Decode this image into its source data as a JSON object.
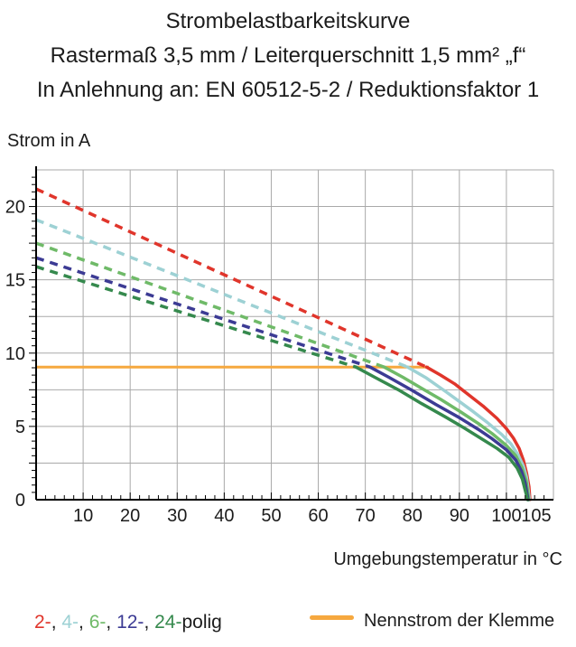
{
  "header": {
    "line1": "Strombelastbarkeitskurve",
    "line2": "Rastermaß 3,5 mm / Leiterquerschnitt 1,5 mm² „f“",
    "line3": "In Anlehnung an: EN 60512-5-2 / Reduktionsfaktor 1"
  },
  "colors": {
    "text": "#1c1c1c",
    "grid": "#a9a9a9",
    "axis": "#000000"
  },
  "legend": {
    "poles": [
      {
        "label": "2-",
        "color": "#e0352b"
      },
      {
        "label": "4-",
        "color": "#9dd1d4"
      },
      {
        "label": "6-",
        "color": "#6fba68"
      },
      {
        "label": "12-",
        "color": "#3c3b94"
      },
      {
        "label": "24-",
        "color": "#35894d"
      }
    ],
    "separator": ", ",
    "suffix": "polig",
    "nominal_label": "Nennstrom der Klemme",
    "nominal_color": "#f6a83f"
  },
  "chart_data": {
    "type": "line",
    "title": "Strombelastbarkeitskurve",
    "xlabel": "Umgebungstemperatur in °C",
    "ylabel": "Strom in A",
    "xlim": [
      0,
      110
    ],
    "ylim": [
      0,
      22.5
    ],
    "grid": true,
    "x_grid_step": 10,
    "y_grid_step": 2.5,
    "x_minor_tick_step": 2,
    "y_minor_tick_step": 0.5,
    "x_tick_labels": [
      10,
      20,
      30,
      40,
      50,
      60,
      70,
      80,
      90,
      100,
      105
    ],
    "y_tick_labels": [
      0,
      5,
      10,
      15,
      20
    ],
    "nominal_current": {
      "label": "Nennstrom der Klemme",
      "value": 9.05,
      "x_start": 0,
      "x_end": 83.5,
      "color": "#f6a83f"
    },
    "series": [
      {
        "name": "2-polig",
        "color": "#e0352b",
        "dashed": [
          [
            0,
            21.2
          ],
          [
            83,
            9.05
          ]
        ],
        "solid": [
          [
            83,
            9.05
          ],
          [
            86,
            8.5
          ],
          [
            89,
            7.9
          ],
          [
            92,
            7.15
          ],
          [
            95,
            6.4
          ],
          [
            98,
            5.55
          ],
          [
            100,
            4.85
          ],
          [
            101.5,
            4.2
          ],
          [
            102.7,
            3.5
          ],
          [
            103.6,
            2.7
          ],
          [
            104.3,
            1.8
          ],
          [
            104.8,
            0.9
          ],
          [
            105,
            0
          ]
        ]
      },
      {
        "name": "4-polig",
        "color": "#9dd1d4",
        "dashed": [
          [
            0,
            19.1
          ],
          [
            79,
            9.05
          ]
        ],
        "solid": [
          [
            79,
            9.05
          ],
          [
            83,
            8.3
          ],
          [
            87,
            7.4
          ],
          [
            90,
            6.7
          ],
          [
            93,
            6.0
          ],
          [
            96,
            5.25
          ],
          [
            99,
            4.45
          ],
          [
            101,
            3.8
          ],
          [
            102.5,
            3.05
          ],
          [
            103.6,
            2.3
          ],
          [
            104.3,
            1.5
          ],
          [
            104.9,
            0
          ]
        ]
      },
      {
        "name": "6-polig",
        "color": "#6fba68",
        "dashed": [
          [
            0,
            17.5
          ],
          [
            74,
            9.05
          ]
        ],
        "solid": [
          [
            74,
            9.05
          ],
          [
            78,
            8.35
          ],
          [
            82,
            7.6
          ],
          [
            86,
            6.85
          ],
          [
            90,
            6.05
          ],
          [
            94,
            5.2
          ],
          [
            97,
            4.5
          ],
          [
            100,
            3.7
          ],
          [
            102,
            3.0
          ],
          [
            103.3,
            2.2
          ],
          [
            104.2,
            1.3
          ],
          [
            104.75,
            0
          ]
        ]
      },
      {
        "name": "12-polig",
        "color": "#3c3b94",
        "dashed": [
          [
            0,
            16.5
          ],
          [
            71,
            9.05
          ]
        ],
        "solid": [
          [
            71,
            9.05
          ],
          [
            75,
            8.35
          ],
          [
            80,
            7.45
          ],
          [
            85,
            6.5
          ],
          [
            90,
            5.6
          ],
          [
            94,
            4.8
          ],
          [
            97,
            4.15
          ],
          [
            100,
            3.4
          ],
          [
            102,
            2.7
          ],
          [
            103.2,
            1.95
          ],
          [
            104,
            1.15
          ],
          [
            104.6,
            0
          ]
        ]
      },
      {
        "name": "24-polig",
        "color": "#35894d",
        "dashed": [
          [
            0,
            15.9
          ],
          [
            68,
            9.05
          ]
        ],
        "solid": [
          [
            68,
            9.05
          ],
          [
            72,
            8.35
          ],
          [
            77,
            7.5
          ],
          [
            82,
            6.55
          ],
          [
            87,
            5.65
          ],
          [
            91,
            4.9
          ],
          [
            95,
            4.1
          ],
          [
            98,
            3.5
          ],
          [
            100.5,
            2.9
          ],
          [
            102.3,
            2.15
          ],
          [
            103.4,
            1.4
          ],
          [
            104.5,
            0
          ]
        ]
      }
    ]
  }
}
